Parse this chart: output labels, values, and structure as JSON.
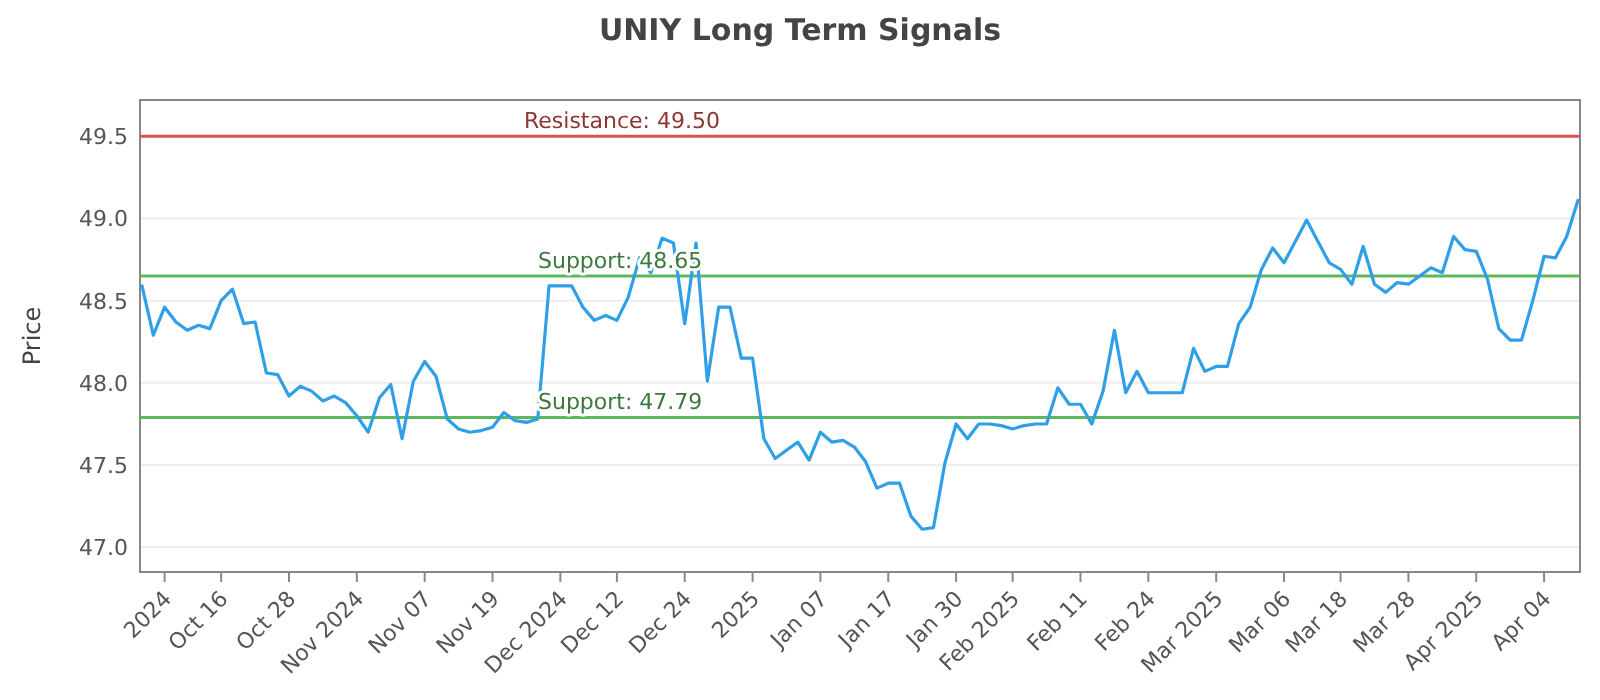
{
  "chart_data": {
    "type": "line",
    "title": "UNIY Long Term Signals",
    "ylabel": "Price",
    "categories": [
      null,
      null,
      "2024",
      null,
      null,
      null,
      null,
      "Oct 16",
      null,
      null,
      null,
      null,
      null,
      "Oct 28",
      null,
      null,
      null,
      null,
      null,
      "Nov 2024",
      null,
      null,
      null,
      null,
      null,
      "Nov 07",
      null,
      null,
      null,
      null,
      null,
      "Nov 19",
      null,
      null,
      null,
      null,
      null,
      "Dec 2024",
      null,
      null,
      null,
      null,
      "Dec 12",
      null,
      null,
      null,
      null,
      null,
      "Dec 24",
      null,
      null,
      null,
      null,
      null,
      "2025",
      null,
      null,
      null,
      null,
      null,
      "Jan 07",
      null,
      null,
      null,
      null,
      null,
      "Jan 17",
      null,
      null,
      null,
      null,
      null,
      "Jan 30",
      null,
      null,
      null,
      null,
      "Feb 2025",
      null,
      null,
      null,
      null,
      null,
      "Feb 11",
      null,
      null,
      null,
      null,
      null,
      "Feb 24",
      null,
      null,
      null,
      null,
      null,
      "Mar 2025",
      null,
      null,
      null,
      null,
      null,
      "Mar 06",
      null,
      null,
      null,
      null,
      "Mar 18",
      null,
      null,
      null,
      null,
      null,
      "Mar 28",
      null,
      null,
      null,
      null,
      null,
      "Apr 2025",
      null,
      null,
      null,
      null,
      null,
      "Apr 04",
      null,
      null,
      null
    ],
    "series": [
      {
        "color": "#2f9fe8",
        "values": [
          48.59,
          48.29,
          48.46,
          48.37,
          48.32,
          48.35,
          48.33,
          48.5,
          48.57,
          48.36,
          48.37,
          48.06,
          48.05,
          47.92,
          47.98,
          47.95,
          47.89,
          47.92,
          47.88,
          47.8,
          47.7,
          47.91,
          47.99,
          47.66,
          48.01,
          48.13,
          48.04,
          47.78,
          47.72,
          47.7,
          47.71,
          47.73,
          47.82,
          47.77,
          47.76,
          47.78,
          48.59,
          48.59,
          48.59,
          48.46,
          48.38,
          48.41,
          48.38,
          48.52,
          48.76,
          48.67,
          48.88,
          48.85,
          48.36,
          48.85,
          48.01,
          48.46,
          48.46,
          48.15,
          48.15,
          47.66,
          47.54,
          47.59,
          47.64,
          47.53,
          47.7,
          47.64,
          47.65,
          47.61,
          47.52,
          47.36,
          47.39,
          47.39,
          47.19,
          47.11,
          47.12,
          47.51,
          47.75,
          47.66,
          47.75,
          47.75,
          47.74,
          47.72,
          47.74,
          47.75,
          47.75,
          47.97,
          47.87,
          47.87,
          47.75,
          47.95,
          48.32,
          47.94,
          48.07,
          47.94,
          47.94,
          47.94,
          47.94,
          48.21,
          48.07,
          48.1,
          48.1,
          48.36,
          48.46,
          48.69,
          48.82,
          48.73,
          48.86,
          48.99,
          48.86,
          48.73,
          48.69,
          48.6,
          48.83,
          48.6,
          48.55,
          48.61,
          48.6,
          48.65,
          48.7,
          48.67,
          48.89,
          48.81,
          48.8,
          48.63,
          48.33,
          48.26,
          48.26,
          48.5,
          48.77,
          48.76,
          48.89,
          49.11
        ]
      }
    ],
    "ylim": [
      46.85,
      49.72
    ],
    "yticks": [
      {
        "value": 47,
        "label": "47.0"
      },
      {
        "value": 47.5,
        "label": "47.5"
      },
      {
        "value": 48,
        "label": "48.0"
      },
      {
        "value": 48.5,
        "label": "48.5"
      },
      {
        "value": 49,
        "label": "49.0"
      },
      {
        "value": 49.5,
        "label": "49.5"
      }
    ],
    "grid": "y",
    "marker": "none",
    "line_style": "solid",
    "ref_lines": [
      {
        "axis": "y",
        "value": 49.5,
        "label": "Resistance: 49.50",
        "color": "#d9534f"
      },
      {
        "axis": "y",
        "value": 48.65,
        "label": "Support: 48.65",
        "color": "#5cb85c"
      },
      {
        "axis": "y",
        "value": 47.79,
        "label": "Support: 47.79",
        "color": "#5cb85c"
      }
    ]
  }
}
